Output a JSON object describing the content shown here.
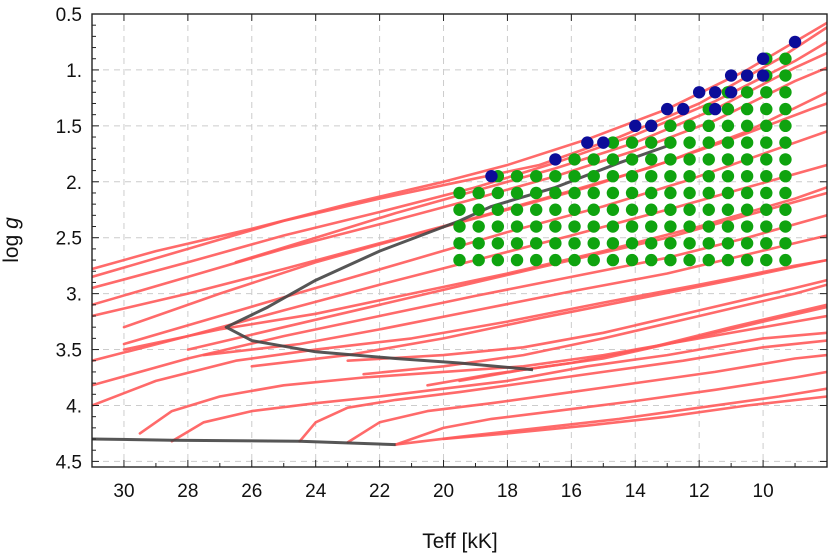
{
  "chart_data": {
    "type": "line",
    "title": "",
    "xlabel": "Teff [kK]",
    "ylabel_main": "log ",
    "ylabel_italic": "g",
    "xlim": [
      31.0,
      8.0
    ],
    "ylim": [
      4.55,
      0.5
    ],
    "x_ticks": [
      30,
      28,
      26,
      24,
      22,
      20,
      18,
      16,
      14,
      12,
      10
    ],
    "y_ticks": [
      0.5,
      1.0,
      1.5,
      2.0,
      2.5,
      3.0,
      3.5,
      4.0,
      4.5
    ],
    "y_tick_labels": [
      "0.5",
      "1.",
      "1.5",
      "2.",
      "2.5",
      "3.",
      "3.5",
      "4.",
      "4.5"
    ],
    "grid": true,
    "colors": {
      "tracks": "#ff5a5a",
      "boundary": "#444444",
      "grid_points": "#0fa30f",
      "edge_points": "#0c0c99"
    },
    "track_series": [
      [
        [
          31.0,
          2.85
        ],
        [
          28.0,
          2.6
        ],
        [
          25.0,
          2.35
        ],
        [
          22.0,
          2.15
        ],
        [
          19.5,
          2.0
        ],
        [
          17.0,
          1.85
        ],
        [
          14.5,
          1.6
        ],
        [
          12.0,
          1.3
        ],
        [
          9.5,
          0.9
        ],
        [
          8.0,
          0.62
        ]
      ],
      [
        [
          31.0,
          2.78
        ],
        [
          29.0,
          2.62
        ],
        [
          26.0,
          2.42
        ],
        [
          23.0,
          2.2
        ],
        [
          20.0,
          2.0
        ],
        [
          18.0,
          1.85
        ],
        [
          15.5,
          1.62
        ],
        [
          13.0,
          1.35
        ],
        [
          10.5,
          1.0
        ],
        [
          8.0,
          0.58
        ]
      ],
      [
        [
          31.0,
          2.95
        ],
        [
          28.0,
          2.72
        ],
        [
          25.0,
          2.48
        ],
        [
          22.0,
          2.27
        ],
        [
          19.0,
          2.05
        ],
        [
          16.5,
          1.83
        ],
        [
          14.0,
          1.58
        ],
        [
          11.5,
          1.28
        ],
        [
          9.0,
          0.92
        ],
        [
          8.0,
          0.75
        ]
      ],
      [
        [
          26.5,
          2.72
        ],
        [
          24.0,
          2.5
        ],
        [
          21.5,
          2.28
        ],
        [
          19.0,
          2.08
        ],
        [
          16.5,
          1.88
        ],
        [
          14.0,
          1.65
        ],
        [
          11.5,
          1.35
        ],
        [
          9.0,
          0.98
        ],
        [
          8.0,
          0.85
        ]
      ],
      [
        [
          31.0,
          3.1
        ],
        [
          28.0,
          2.85
        ],
        [
          25.0,
          2.6
        ],
        [
          22.0,
          2.38
        ],
        [
          19.0,
          2.15
        ],
        [
          16.5,
          1.95
        ],
        [
          14.0,
          1.72
        ],
        [
          11.5,
          1.45
        ],
        [
          9.0,
          1.1
        ],
        [
          8.0,
          0.98
        ]
      ],
      [
        [
          30.0,
          3.3
        ],
        [
          27.0,
          3.0
        ],
        [
          24.0,
          2.72
        ],
        [
          21.0,
          2.48
        ],
        [
          18.0,
          2.25
        ],
        [
          15.5,
          2.05
        ],
        [
          13.0,
          1.82
        ],
        [
          10.5,
          1.55
        ],
        [
          8.0,
          1.2
        ]
      ],
      [
        [
          31.0,
          3.2
        ],
        [
          28.0,
          3.0
        ],
        [
          25.0,
          2.78
        ],
        [
          22.0,
          2.55
        ],
        [
          19.0,
          2.32
        ],
        [
          16.0,
          2.08
        ],
        [
          13.5,
          1.87
        ],
        [
          11.0,
          1.62
        ],
        [
          8.5,
          1.35
        ],
        [
          8.0,
          1.3
        ]
      ],
      [
        [
          30.0,
          3.45
        ],
        [
          27.0,
          3.2
        ],
        [
          24.0,
          2.95
        ],
        [
          21.0,
          2.7
        ],
        [
          18.0,
          2.45
        ],
        [
          15.0,
          2.22
        ],
        [
          12.5,
          2.0
        ],
        [
          10.0,
          1.75
        ],
        [
          8.0,
          1.55
        ]
      ],
      [
        [
          31.0,
          3.6
        ],
        [
          28.0,
          3.38
        ],
        [
          25.0,
          3.15
        ],
        [
          22.0,
          2.92
        ],
        [
          19.0,
          2.7
        ],
        [
          16.0,
          2.48
        ],
        [
          13.0,
          2.25
        ],
        [
          10.5,
          2.05
        ],
        [
          8.0,
          1.85
        ]
      ],
      [
        [
          28.0,
          3.5
        ],
        [
          25.0,
          3.3
        ],
        [
          22.0,
          3.1
        ],
        [
          19.0,
          2.9
        ],
        [
          16.0,
          2.7
        ],
        [
          13.0,
          2.5
        ],
        [
          10.5,
          2.3
        ],
        [
          8.0,
          2.1
        ]
      ],
      [
        [
          31.0,
          3.82
        ],
        [
          28.0,
          3.58
        ],
        [
          25.0,
          3.38
        ],
        [
          22.0,
          3.2
        ],
        [
          19.0,
          3.02
        ],
        [
          16.0,
          2.85
        ],
        [
          13.0,
          2.68
        ],
        [
          10.5,
          2.5
        ],
        [
          8.0,
          2.3
        ]
      ],
      [
        [
          27.5,
          3.55
        ],
        [
          24.5,
          3.45
        ],
        [
          22.0,
          3.32
        ],
        [
          19.0,
          3.15
        ],
        [
          16.0,
          2.98
        ],
        [
          13.0,
          2.82
        ],
        [
          10.5,
          2.65
        ],
        [
          8.0,
          2.48
        ]
      ],
      [
        [
          26.0,
          3.65
        ],
        [
          23.0,
          3.55
        ],
        [
          20.0,
          3.4
        ],
        [
          17.0,
          3.22
        ],
        [
          14.0,
          3.05
        ],
        [
          11.0,
          2.88
        ],
        [
          8.0,
          2.7
        ]
      ],
      [
        [
          31.0,
          4.0
        ],
        [
          29.0,
          3.78
        ],
        [
          26.5,
          3.6
        ],
        [
          24.0,
          3.5
        ],
        [
          21.0,
          3.4
        ],
        [
          18.0,
          3.25
        ],
        [
          15.0,
          3.08
        ],
        [
          12.0,
          2.92
        ],
        [
          9.0,
          2.75
        ],
        [
          8.0,
          2.7
        ]
      ],
      [
        [
          22.5,
          3.72
        ],
        [
          20.0,
          3.65
        ],
        [
          17.5,
          3.55
        ],
        [
          15.0,
          3.4
        ],
        [
          12.0,
          3.2
        ],
        [
          9.0,
          3.0
        ],
        [
          8.0,
          2.92
        ]
      ],
      [
        [
          20.5,
          3.82
        ],
        [
          18.5,
          3.72
        ],
        [
          16.0,
          3.62
        ],
        [
          13.5,
          3.48
        ],
        [
          11.0,
          3.3
        ],
        [
          8.0,
          3.1
        ]
      ],
      [
        [
          19.5,
          3.78
        ],
        [
          17.5,
          3.68
        ],
        [
          15.0,
          3.58
        ],
        [
          12.5,
          3.42
        ],
        [
          10.0,
          3.25
        ],
        [
          8.0,
          3.12
        ]
      ],
      [
        [
          29.5,
          4.25
        ],
        [
          28.5,
          4.05
        ],
        [
          27.0,
          3.92
        ],
        [
          25.0,
          3.82
        ],
        [
          22.5,
          3.75
        ],
        [
          20.0,
          3.7
        ],
        [
          17.5,
          3.65
        ],
        [
          15.0,
          3.55
        ],
        [
          12.0,
          3.4
        ],
        [
          9.0,
          3.25
        ],
        [
          8.0,
          3.2
        ]
      ],
      [
        [
          28.5,
          4.32
        ],
        [
          27.5,
          4.15
        ],
        [
          26.0,
          4.05
        ],
        [
          24.0,
          3.98
        ],
        [
          22.0,
          3.92
        ],
        [
          20.0,
          3.85
        ],
        [
          18.0,
          3.78
        ],
        [
          15.5,
          3.65
        ],
        [
          13.0,
          3.55
        ],
        [
          10.0,
          3.4
        ],
        [
          8.0,
          3.35
        ]
      ],
      [
        [
          24.5,
          4.32
        ],
        [
          24.0,
          4.15
        ],
        [
          23.0,
          4.02
        ],
        [
          21.5,
          3.95
        ],
        [
          19.5,
          3.88
        ],
        [
          17.5,
          3.8
        ],
        [
          15.0,
          3.7
        ],
        [
          12.5,
          3.6
        ],
        [
          10.0,
          3.48
        ],
        [
          8.0,
          3.42
        ]
      ],
      [
        [
          23.0,
          4.33
        ],
        [
          22.0,
          4.15
        ],
        [
          20.5,
          4.05
        ],
        [
          18.5,
          3.98
        ],
        [
          16.5,
          3.9
        ],
        [
          14.0,
          3.8
        ],
        [
          11.5,
          3.7
        ],
        [
          9.0,
          3.58
        ],
        [
          8.0,
          3.55
        ]
      ],
      [
        [
          21.5,
          4.35
        ],
        [
          20.0,
          4.2
        ],
        [
          18.5,
          4.12
        ],
        [
          16.5,
          4.05
        ],
        [
          14.0,
          3.96
        ],
        [
          11.5,
          3.86
        ],
        [
          9.0,
          3.75
        ],
        [
          8.0,
          3.7
        ]
      ],
      [
        [
          21.5,
          4.35
        ],
        [
          19.5,
          4.28
        ],
        [
          17.0,
          4.2
        ],
        [
          14.5,
          4.12
        ],
        [
          12.0,
          4.02
        ],
        [
          9.5,
          3.92
        ],
        [
          8.0,
          3.85
        ]
      ],
      [
        [
          20.0,
          4.3
        ],
        [
          18.0,
          4.25
        ],
        [
          15.5,
          4.18
        ],
        [
          13.0,
          4.1
        ],
        [
          10.5,
          4.0
        ],
        [
          8.0,
          3.92
        ]
      ],
      [
        [
          30.0,
          3.5
        ],
        [
          27.0,
          3.32
        ],
        [
          24.0,
          3.18
        ],
        [
          21.0,
          3.0
        ],
        [
          18.0,
          2.82
        ],
        [
          15.0,
          2.62
        ],
        [
          12.0,
          2.4
        ],
        [
          9.0,
          2.15
        ],
        [
          8.0,
          2.05
        ]
      ],
      [
        [
          23.0,
          3.6
        ],
        [
          20.0,
          3.55
        ],
        [
          17.5,
          3.48
        ],
        [
          15.0,
          3.35
        ],
        [
          12.0,
          3.15
        ],
        [
          9.0,
          2.95
        ],
        [
          8.0,
          2.88
        ]
      ]
    ],
    "boundary_series": [
      [
        [
          19.5,
          2.35
        ],
        [
          18.5,
          2.22
        ],
        [
          16.5,
          2.05
        ],
        [
          14.5,
          1.83
        ],
        [
          13.0,
          1.68
        ]
      ],
      [
        [
          19.5,
          2.35
        ],
        [
          22.0,
          2.62
        ],
        [
          24.0,
          2.88
        ],
        [
          25.5,
          3.12
        ],
        [
          26.8,
          3.3
        ],
        [
          26.0,
          3.42
        ],
        [
          24.0,
          3.52
        ],
        [
          21.5,
          3.58
        ],
        [
          19.5,
          3.62
        ],
        [
          17.2,
          3.68
        ]
      ],
      [
        [
          31.0,
          4.3
        ],
        [
          28.5,
          4.31
        ],
        [
          24.5,
          4.32
        ],
        [
          21.5,
          4.35
        ]
      ]
    ],
    "green_points": {
      "teff_columns": [
        19.5,
        18.9,
        18.3,
        17.7,
        17.1,
        16.5,
        15.9,
        15.3,
        14.7,
        14.1,
        13.5,
        12.9,
        12.3,
        11.7,
        11.1,
        10.5,
        9.9,
        9.3
      ],
      "logg_rows": [
        0.9,
        1.05,
        1.2,
        1.35,
        1.5,
        1.65,
        1.8,
        1.95,
        2.1,
        2.25,
        2.4,
        2.55,
        2.7
      ],
      "max_teff_by_row": [
        9.9,
        10.5,
        11.1,
        11.7,
        13.5,
        14.7,
        15.9,
        18.3,
        19.5,
        19.5,
        19.5,
        19.5,
        19.5
      ]
    },
    "blue_points": [
      [
        18.5,
        1.95
      ],
      [
        16.5,
        1.8
      ],
      [
        15.5,
        1.65
      ],
      [
        15.0,
        1.65
      ],
      [
        14.0,
        1.5
      ],
      [
        13.5,
        1.5
      ],
      [
        13.0,
        1.35
      ],
      [
        12.5,
        1.35
      ],
      [
        12.0,
        1.2
      ],
      [
        11.5,
        1.2
      ],
      [
        11.0,
        1.2
      ],
      [
        11.5,
        1.35
      ],
      [
        11.0,
        1.05
      ],
      [
        10.5,
        1.05
      ],
      [
        10.0,
        1.05
      ],
      [
        10.0,
        0.9
      ],
      [
        9.0,
        0.75
      ]
    ]
  }
}
